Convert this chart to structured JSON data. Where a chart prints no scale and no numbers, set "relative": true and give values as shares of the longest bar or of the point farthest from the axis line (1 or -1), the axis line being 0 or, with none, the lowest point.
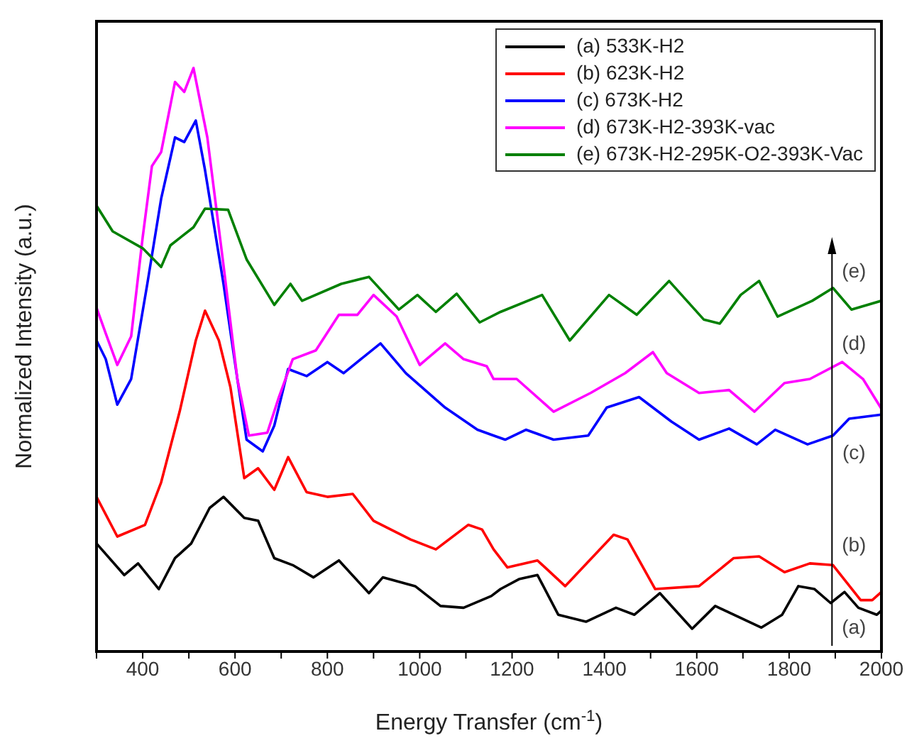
{
  "chart_data": {
    "type": "line",
    "relative": true,
    "xlabel": "Energy Transfer (cm$^{-1}$)",
    "ylabel": "Normalized Intensity (a.u.)",
    "xlim": [
      300,
      2000
    ],
    "xticks": [
      {
        "value": 300,
        "label": null
      },
      400,
      {
        "value": 500,
        "label": null
      },
      600,
      {
        "value": 700,
        "label": null
      },
      800,
      {
        "value": 900,
        "label": null
      },
      1000,
      {
        "value": 1100,
        "label": null
      },
      1200,
      {
        "value": 1300,
        "label": null
      },
      1400,
      {
        "value": 1500,
        "label": null
      },
      1600,
      {
        "value": 1700,
        "label": null
      },
      1800,
      {
        "value": 1900,
        "label": null
      },
      2000
    ],
    "legend": "top right",
    "series": [
      {
        "name": "(a) 533K-H2",
        "color": "#000000",
        "x": [
          300,
          360,
          390,
          435,
          470,
          505,
          545,
          575,
          620,
          650,
          685,
          725,
          770,
          825,
          890,
          920,
          990,
          1045,
          1095,
          1155,
          1175,
          1215,
          1255,
          1300,
          1360,
          1425,
          1465,
          1520,
          1590,
          1640,
          1740,
          1785,
          1820,
          1855,
          1890,
          1920,
          1950,
          1990,
          2000
        ],
        "values": [
          0.185,
          0.131,
          0.151,
          0.107,
          0.16,
          0.185,
          0.246,
          0.265,
          0.229,
          0.224,
          0.16,
          0.148,
          0.127,
          0.156,
          0.1,
          0.127,
          0.112,
          0.078,
          0.075,
          0.095,
          0.107,
          0.124,
          0.131,
          0.063,
          0.051,
          0.075,
          0.063,
          0.1,
          0.039,
          0.078,
          0.041,
          0.063,
          0.112,
          0.107,
          0.083,
          0.102,
          0.075,
          0.063,
          0.07
        ]
      },
      {
        "name": "(b) 623K-H2",
        "color": "#ff0000",
        "x": [
          300,
          345,
          405,
          440,
          480,
          515,
          535,
          565,
          590,
          620,
          650,
          685,
          715,
          755,
          800,
          855,
          900,
          980,
          1035,
          1105,
          1135,
          1160,
          1190,
          1255,
          1315,
          1420,
          1450,
          1510,
          1605,
          1680,
          1735,
          1790,
          1845,
          1895,
          1955,
          1980,
          2000
        ],
        "values": [
          0.265,
          0.197,
          0.217,
          0.29,
          0.411,
          0.533,
          0.584,
          0.533,
          0.453,
          0.297,
          0.314,
          0.277,
          0.333,
          0.273,
          0.265,
          0.27,
          0.224,
          0.192,
          0.175,
          0.217,
          0.209,
          0.175,
          0.144,
          0.156,
          0.112,
          0.2,
          0.192,
          0.107,
          0.112,
          0.16,
          0.163,
          0.136,
          0.151,
          0.148,
          0.088,
          0.088,
          0.102
        ]
      },
      {
        "name": "(c) 673K-H2",
        "color": "#0000ff",
        "x": [
          300,
          320,
          345,
          375,
          410,
          440,
          470,
          490,
          515,
          535,
          575,
          605,
          625,
          660,
          685,
          715,
          755,
          800,
          835,
          915,
          970,
          1055,
          1125,
          1160,
          1185,
          1230,
          1290,
          1365,
          1405,
          1475,
          1545,
          1605,
          1670,
          1730,
          1770,
          1840,
          1895,
          1930,
          2000
        ],
        "values": [
          0.533,
          0.501,
          0.423,
          0.467,
          0.63,
          0.776,
          0.881,
          0.873,
          0.91,
          0.825,
          0.63,
          0.467,
          0.363,
          0.343,
          0.387,
          0.484,
          0.472,
          0.496,
          0.477,
          0.528,
          0.477,
          0.418,
          0.38,
          0.37,
          0.363,
          0.38,
          0.363,
          0.37,
          0.418,
          0.436,
          0.394,
          0.363,
          0.382,
          0.355,
          0.38,
          0.355,
          0.37,
          0.399,
          0.406
        ]
      },
      {
        "name": "(d) 673K-H2-393K-vac",
        "color": "#ff00ff",
        "x": [
          300,
          320,
          345,
          375,
          400,
          420,
          440,
          470,
          490,
          510,
          540,
          575,
          605,
          630,
          670,
          695,
          725,
          775,
          825,
          865,
          900,
          950,
          1000,
          1055,
          1095,
          1145,
          1160,
          1210,
          1290,
          1370,
          1445,
          1505,
          1535,
          1605,
          1670,
          1725,
          1790,
          1845,
          1915,
          1960,
          2000
        ],
        "values": [
          0.589,
          0.545,
          0.491,
          0.54,
          0.71,
          0.832,
          0.856,
          0.976,
          0.959,
          1,
          0.881,
          0.662,
          0.467,
          0.37,
          0.375,
          0.436,
          0.501,
          0.516,
          0.577,
          0.577,
          0.611,
          0.574,
          0.491,
          0.528,
          0.501,
          0.489,
          0.467,
          0.467,
          0.411,
          0.443,
          0.477,
          0.513,
          0.477,
          0.443,
          0.448,
          0.411,
          0.46,
          0.467,
          0.496,
          0.467,
          0.416
        ]
      },
      {
        "name": "(e) 673K-H2-295K-O2-393K-Vac",
        "color": "#008000",
        "x": [
          300,
          335,
          400,
          440,
          460,
          510,
          535,
          585,
          625,
          685,
          720,
          745,
          830,
          890,
          955,
          995,
          1035,
          1080,
          1130,
          1175,
          1265,
          1325,
          1410,
          1470,
          1540,
          1615,
          1650,
          1695,
          1735,
          1775,
          1850,
          1895,
          1935,
          2000
        ],
        "values": [
          0.764,
          0.72,
          0.691,
          0.659,
          0.696,
          0.727,
          0.759,
          0.757,
          0.672,
          0.594,
          0.63,
          0.601,
          0.63,
          0.642,
          0.586,
          0.611,
          0.582,
          0.613,
          0.564,
          0.582,
          0.611,
          0.533,
          0.611,
          0.577,
          0.635,
          0.569,
          0.562,
          0.611,
          0.635,
          0.574,
          0.601,
          0.623,
          0.586,
          0.601
        ]
      }
    ],
    "annotations": [
      "(a)",
      "(b)",
      "(c)",
      "(d)",
      "(e)"
    ]
  }
}
